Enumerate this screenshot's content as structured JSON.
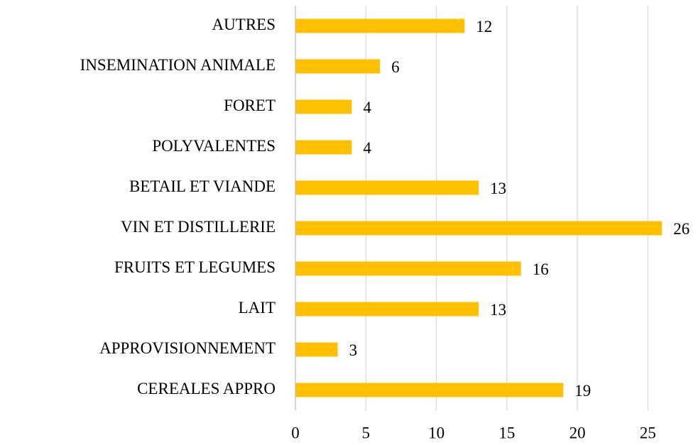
{
  "chart_data": {
    "type": "bar",
    "orientation": "horizontal",
    "categories": [
      "AUTRES",
      "INSEMINATION ANIMALE",
      "FORET",
      "POLYVALENTES",
      "BETAIL ET VIANDE",
      "VIN ET DISTILLERIE",
      "FRUITS ET LEGUMES",
      "LAIT",
      "APPROVISIONNEMENT",
      "CEREALES APPRO"
    ],
    "values": [
      12,
      6,
      4,
      4,
      13,
      26,
      16,
      13,
      3,
      19
    ],
    "color": "#ffc000",
    "xlim": [
      0,
      28
    ],
    "xticks": [
      0,
      5,
      10,
      15,
      20,
      25
    ],
    "grid": true
  }
}
